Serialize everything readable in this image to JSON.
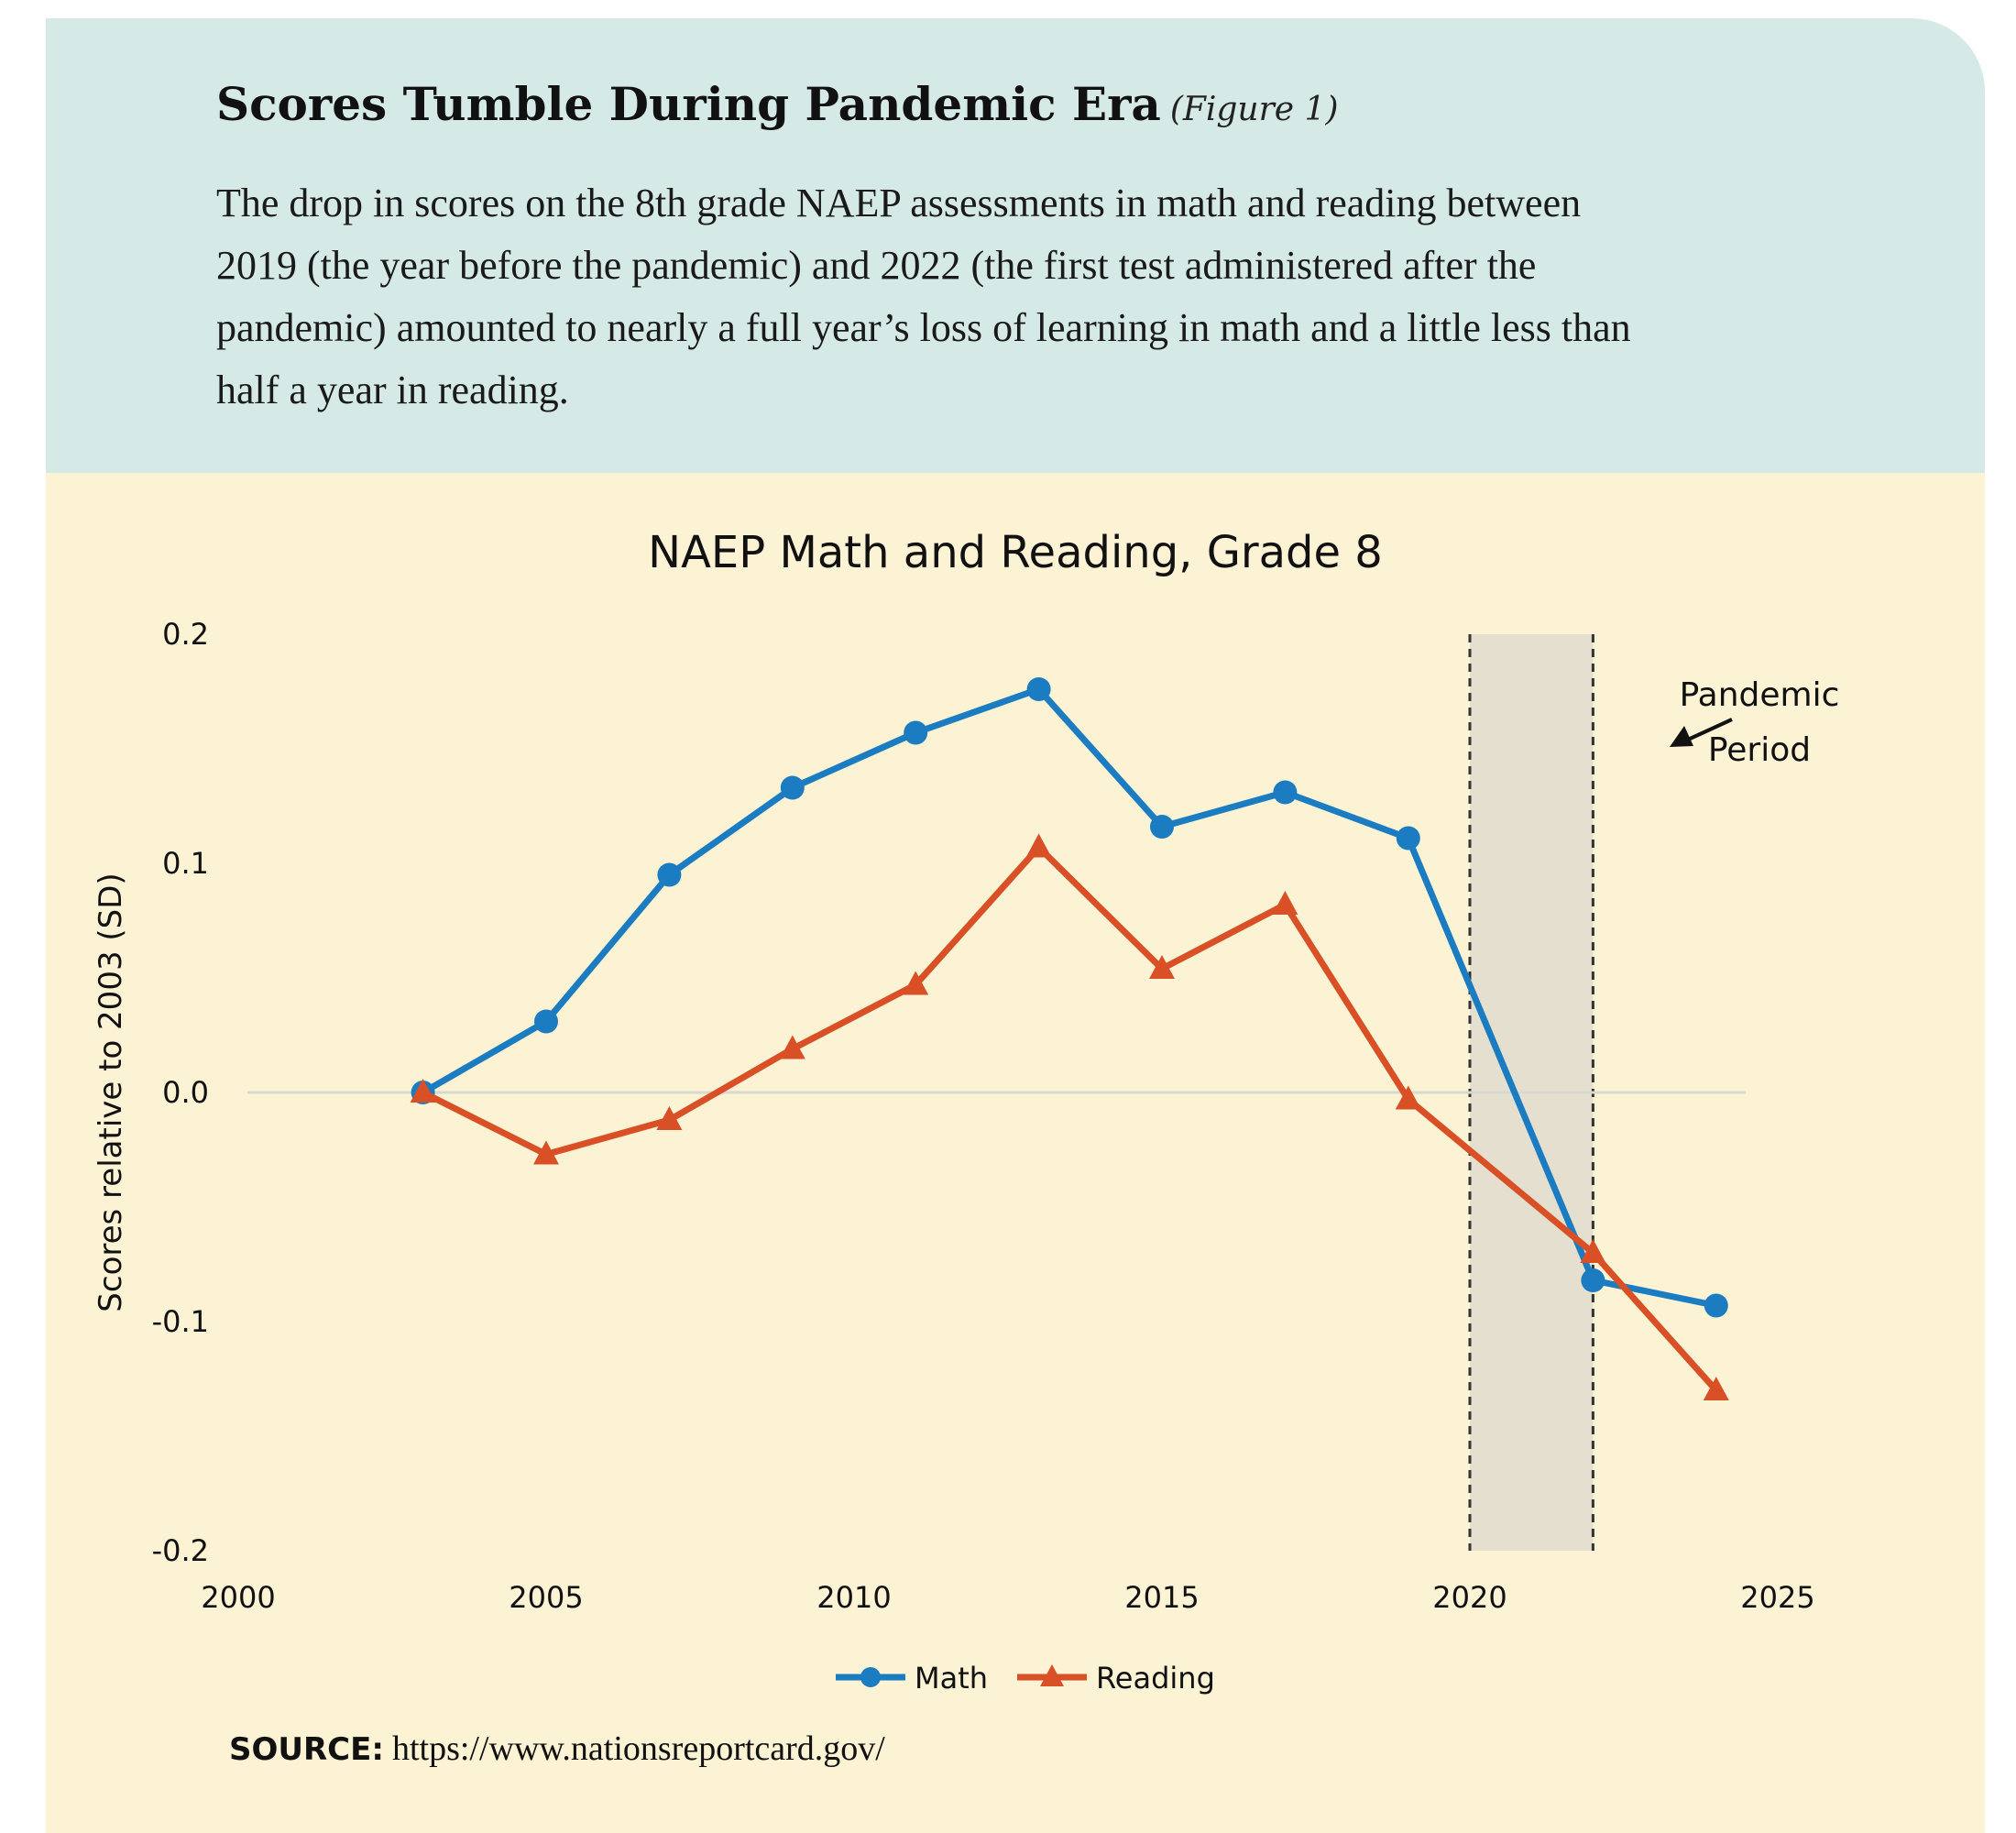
{
  "header": {
    "title": "Scores Tumble During Pandemic Era",
    "figure_label": "(Figure 1)",
    "description_lines": [
      "The drop in scores on the 8th grade NAEP assessments in math and reading between",
      "2019 (the year before the pandemic) and 2022 (the first test administered after the",
      "pandemic) amounted to nearly a full year’s loss of learning in math and a little less than",
      "half a year in reading."
    ]
  },
  "chart_data": {
    "type": "line",
    "title": "NAEP Math and Reading, Grade 8",
    "xlabel": "",
    "ylabel": "Scores relative to 2003 (SD)",
    "xlim": [
      2000,
      2025
    ],
    "ylim": [
      -0.2,
      0.2
    ],
    "x_ticks": [
      "2000",
      "2005",
      "2010",
      "2015",
      "2020",
      "2025"
    ],
    "y_ticks": [
      "0.2",
      "0.1",
      "0.0",
      "-0.1",
      "-0.2"
    ],
    "grid": false,
    "zero_line": true,
    "legend_position": "bottom",
    "series": [
      {
        "name": "Math",
        "color": "#1b7cc1",
        "marker": "circle",
        "x": [
          2003,
          2005,
          2007,
          2009,
          2011,
          2013,
          2015,
          2017,
          2019,
          2022,
          2024
        ],
        "y": [
          0.0,
          0.031,
          0.095,
          0.133,
          0.157,
          0.176,
          0.116,
          0.131,
          0.111,
          -0.082,
          -0.093
        ]
      },
      {
        "name": "Reading",
        "color": "#d94f26",
        "marker": "triangle",
        "x": [
          2003,
          2005,
          2007,
          2009,
          2011,
          2013,
          2015,
          2017,
          2019,
          2022,
          2024
        ],
        "y": [
          0.0,
          -0.027,
          -0.012,
          0.019,
          0.047,
          0.107,
          0.054,
          0.082,
          -0.003,
          -0.07,
          -0.13
        ]
      }
    ],
    "shaded_region": {
      "x_start": 2020,
      "x_end": 2022,
      "color": "#e5dfd0",
      "label": [
        "Pandemic",
        "Period"
      ]
    }
  },
  "source": {
    "label": "SOURCE",
    "url": "https://www.nationsreportcard.gov/"
  }
}
